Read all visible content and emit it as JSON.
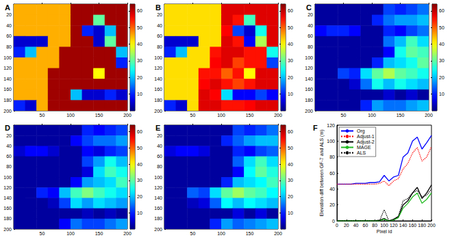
{
  "chart_data": [
    {
      "type": "heatmap",
      "title": "A",
      "xlim": [
        0,
        200
      ],
      "ylim": [
        0,
        200
      ],
      "xticks": [
        50,
        100,
        150,
        200
      ],
      "yticks": [
        20,
        40,
        60,
        80,
        100,
        120,
        140,
        160,
        180,
        200
      ],
      "x": [
        10,
        30,
        50,
        70,
        90,
        110,
        130,
        150,
        170,
        190
      ],
      "y": [
        10,
        30,
        50,
        70,
        90,
        110,
        130,
        150,
        170,
        190
      ],
      "color_range": [
        0,
        64
      ],
      "color_ticks": [
        10,
        20,
        30,
        40,
        50,
        60
      ],
      "cells": [
        [
          45,
          45,
          45,
          45,
          45,
          62,
          62,
          62,
          62,
          62
        ],
        [
          45,
          45,
          45,
          45,
          45,
          62,
          62,
          30,
          62,
          62
        ],
        [
          45,
          45,
          45,
          45,
          45,
          62,
          10,
          5,
          20,
          62
        ],
        [
          5,
          5,
          5,
          45,
          45,
          62,
          62,
          5,
          30,
          62
        ],
        [
          10,
          20,
          45,
          45,
          62,
          62,
          62,
          62,
          62,
          20
        ],
        [
          45,
          45,
          45,
          45,
          62,
          62,
          62,
          62,
          62,
          10
        ],
        [
          45,
          45,
          45,
          62,
          62,
          62,
          62,
          40,
          62,
          62
        ],
        [
          45,
          45,
          45,
          62,
          62,
          62,
          62,
          62,
          62,
          62
        ],
        [
          45,
          45,
          45,
          62,
          62,
          20,
          5,
          5,
          10,
          5
        ],
        [
          10,
          5,
          45,
          62,
          62,
          62,
          62,
          62,
          62,
          62
        ]
      ]
    },
    {
      "type": "heatmap",
      "title": "B",
      "xlim": [
        0,
        200
      ],
      "ylim": [
        0,
        200
      ],
      "xticks": [
        50,
        100,
        150,
        200
      ],
      "yticks": [
        20,
        40,
        60,
        80,
        100,
        120,
        140,
        160,
        180,
        200
      ],
      "x": [
        10,
        30,
        50,
        70,
        90,
        110,
        130,
        150,
        170,
        190
      ],
      "y": [
        10,
        30,
        50,
        70,
        90,
        110,
        130,
        150,
        170,
        190
      ],
      "color_range": [
        0,
        64
      ],
      "color_ticks": [
        10,
        20,
        30,
        40,
        50,
        60
      ],
      "cells": [
        [
          42,
          42,
          42,
          42,
          42,
          58,
          58,
          58,
          58,
          58
        ],
        [
          42,
          42,
          42,
          42,
          42,
          58,
          55,
          28,
          58,
          58
        ],
        [
          42,
          42,
          42,
          42,
          42,
          56,
          12,
          5,
          25,
          58
        ],
        [
          5,
          5,
          5,
          42,
          42,
          58,
          55,
          8,
          35,
          58
        ],
        [
          10,
          20,
          42,
          42,
          55,
          58,
          58,
          55,
          55,
          25
        ],
        [
          42,
          42,
          42,
          42,
          56,
          58,
          52,
          55,
          55,
          12
        ],
        [
          42,
          42,
          42,
          55,
          55,
          50,
          55,
          40,
          58,
          58
        ],
        [
          42,
          42,
          42,
          56,
          58,
          55,
          52,
          55,
          58,
          58
        ],
        [
          42,
          42,
          42,
          58,
          56,
          22,
          8,
          8,
          12,
          8
        ],
        [
          10,
          5,
          42,
          58,
          58,
          55,
          55,
          56,
          58,
          58
        ]
      ]
    },
    {
      "type": "heatmap",
      "title": "C",
      "xlim": [
        0,
        200
      ],
      "ylim": [
        0,
        200
      ],
      "xticks": [
        50,
        100,
        150,
        200
      ],
      "yticks": [
        20,
        40,
        60,
        80,
        100,
        120,
        140,
        160,
        180,
        200
      ],
      "x": [
        10,
        30,
        50,
        70,
        90,
        110,
        130,
        150,
        170,
        190
      ],
      "y": [
        10,
        30,
        50,
        70,
        90,
        110,
        130,
        150,
        170,
        190
      ],
      "color_range": [
        0,
        64
      ],
      "color_ticks": [
        10,
        20,
        30,
        40,
        50,
        60
      ],
      "cells": [
        [
          2,
          2,
          2,
          2,
          2,
          2,
          12,
          10,
          12,
          15
        ],
        [
          2,
          2,
          2,
          2,
          2,
          10,
          15,
          18,
          18,
          20
        ],
        [
          8,
          10,
          10,
          8,
          2,
          2,
          10,
          8,
          12,
          15
        ],
        [
          2,
          2,
          2,
          2,
          2,
          2,
          15,
          20,
          28,
          22
        ],
        [
          2,
          2,
          2,
          2,
          2,
          2,
          8,
          25,
          30,
          28
        ],
        [
          2,
          2,
          2,
          2,
          2,
          10,
          20,
          22,
          25,
          30
        ],
        [
          2,
          2,
          12,
          10,
          22,
          30,
          35,
          30,
          28,
          25
        ],
        [
          2,
          2,
          2,
          5,
          15,
          25,
          20,
          25,
          22,
          20
        ],
        [
          2,
          2,
          2,
          2,
          2,
          2,
          5,
          2,
          5,
          2
        ],
        [
          2,
          2,
          2,
          2,
          10,
          18,
          15,
          15,
          18,
          20
        ]
      ]
    },
    {
      "type": "heatmap",
      "title": "D",
      "xlim": [
        0,
        200
      ],
      "ylim": [
        0,
        200
      ],
      "xticks": [
        50,
        100,
        150,
        200
      ],
      "yticks": [
        20,
        40,
        60,
        80,
        100,
        120,
        140,
        160,
        180,
        200
      ],
      "x": [
        10,
        30,
        50,
        70,
        90,
        110,
        130,
        150,
        170,
        190
      ],
      "y": [
        10,
        30,
        50,
        70,
        90,
        110,
        130,
        150,
        170,
        190
      ],
      "color_range": [
        0,
        64
      ],
      "color_ticks": [
        10,
        20,
        30,
        40,
        50,
        60
      ],
      "cells": [
        [
          2,
          2,
          2,
          2,
          2,
          2,
          10,
          8,
          10,
          12
        ],
        [
          2,
          2,
          2,
          2,
          2,
          8,
          12,
          15,
          15,
          18
        ],
        [
          5,
          8,
          8,
          5,
          2,
          2,
          8,
          6,
          10,
          12
        ],
        [
          2,
          2,
          2,
          2,
          2,
          2,
          12,
          18,
          25,
          20
        ],
        [
          2,
          2,
          2,
          2,
          2,
          2,
          6,
          22,
          28,
          25
        ],
        [
          2,
          2,
          2,
          2,
          2,
          8,
          18,
          20,
          22,
          28
        ],
        [
          2,
          2,
          10,
          8,
          20,
          28,
          32,
          28,
          25,
          22
        ],
        [
          2,
          2,
          2,
          4,
          12,
          22,
          18,
          22,
          20,
          18
        ],
        [
          2,
          2,
          2,
          2,
          2,
          2,
          4,
          2,
          4,
          2
        ],
        [
          2,
          2,
          2,
          2,
          8,
          15,
          12,
          12,
          15,
          18
        ]
      ]
    },
    {
      "type": "heatmap",
      "title": "E",
      "xlim": [
        0,
        200
      ],
      "ylim": [
        0,
        200
      ],
      "xticks": [
        50,
        100,
        150,
        200
      ],
      "yticks": [
        20,
        40,
        60,
        80,
        100,
        120,
        140,
        160,
        180,
        200
      ],
      "x": [
        10,
        30,
        50,
        70,
        90,
        110,
        130,
        150,
        170,
        190
      ],
      "y": [
        10,
        30,
        50,
        70,
        90,
        110,
        130,
        150,
        170,
        190
      ],
      "color_range": [
        0,
        64
      ],
      "color_ticks": [
        10,
        20,
        30,
        40,
        50,
        60
      ],
      "cells": [
        [
          2,
          2,
          2,
          2,
          2,
          2,
          12,
          10,
          12,
          15
        ],
        [
          2,
          2,
          2,
          2,
          2,
          10,
          14,
          18,
          20,
          20
        ],
        [
          6,
          8,
          8,
          6,
          2,
          2,
          10,
          8,
          12,
          14
        ],
        [
          2,
          2,
          2,
          2,
          2,
          2,
          14,
          22,
          28,
          22
        ],
        [
          2,
          2,
          2,
          2,
          2,
          2,
          8,
          24,
          30,
          26
        ],
        [
          2,
          2,
          2,
          2,
          2,
          10,
          20,
          22,
          24,
          28
        ],
        [
          2,
          2,
          14,
          12,
          22,
          30,
          34,
          30,
          28,
          24
        ],
        [
          2,
          2,
          4,
          6,
          14,
          24,
          20,
          24,
          22,
          20
        ],
        [
          2,
          2,
          2,
          2,
          2,
          2,
          6,
          2,
          6,
          2
        ],
        [
          2,
          2,
          2,
          2,
          10,
          18,
          14,
          16,
          18,
          20
        ]
      ]
    },
    {
      "type": "line",
      "title": "F",
      "x_label": "Pixel id",
      "y_label": "Elevation diff between GF-7 and ALS (m)",
      "xlim": [
        0,
        200
      ],
      "ylim": [
        0,
        120
      ],
      "xticks": [
        0,
        20,
        40,
        60,
        80,
        100,
        120,
        140,
        160,
        180,
        200
      ],
      "yticks": [
        0,
        20,
        40,
        60,
        80,
        100,
        120
      ],
      "grid": false,
      "legend": "upper left",
      "x": [
        0,
        10,
        20,
        30,
        40,
        50,
        60,
        70,
        80,
        90,
        100,
        110,
        120,
        130,
        140,
        150,
        160,
        170,
        180,
        190,
        200
      ],
      "series": [
        {
          "name": "Org",
          "color": "#0000ff",
          "line_style": "solid",
          "values": [
            46,
            46,
            46,
            46,
            47,
            47,
            47,
            48,
            48,
            49,
            57,
            50,
            55,
            57,
            80,
            85,
            100,
            105,
            90,
            98,
            107
          ]
        },
        {
          "name": "Adjust-1",
          "color": "#ff0000",
          "line_style": "dotted",
          "values": [
            46,
            46,
            46,
            46,
            46,
            46,
            46,
            46,
            46,
            47,
            50,
            44,
            50,
            53,
            65,
            72,
            85,
            92,
            75,
            80,
            93
          ]
        },
        {
          "name": "Adjust-2",
          "color": "#000000",
          "line_style": "solid",
          "values": [
            0,
            0,
            0,
            0,
            0,
            0,
            0,
            0,
            0,
            1,
            3,
            0,
            2,
            5,
            20,
            25,
            35,
            42,
            28,
            35,
            45
          ]
        },
        {
          "name": "MAGE",
          "color": "#22bb22",
          "line_style": "solid",
          "values": [
            0,
            0,
            0,
            0,
            0,
            0,
            0,
            0,
            0,
            0,
            2,
            0,
            1,
            4,
            16,
            22,
            30,
            35,
            22,
            27,
            35
          ]
        },
        {
          "name": "ALS",
          "color": "#000000",
          "line_style": "dotted",
          "values": [
            0,
            0,
            0,
            0,
            0,
            0,
            0,
            0,
            0,
            0,
            14,
            0,
            2,
            6,
            25,
            28,
            35,
            38,
            30,
            32,
            40
          ]
        }
      ]
    }
  ]
}
